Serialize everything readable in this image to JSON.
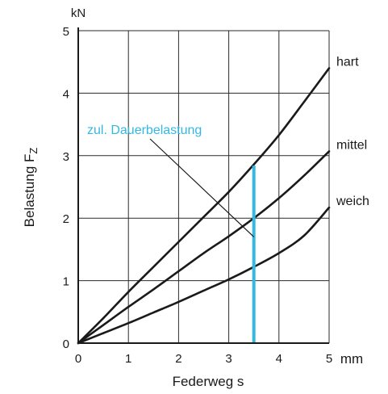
{
  "chart_data": {
    "type": "line",
    "title": "",
    "xlabel": "Federweg s",
    "ylabel": "Belastung F",
    "ylabel_subscript": "Z",
    "x_unit": "mm",
    "y_unit": "kN",
    "xlim": [
      0,
      5
    ],
    "ylim": [
      0,
      5
    ],
    "xticks": [
      "0",
      "1",
      "2",
      "3",
      "4",
      "5"
    ],
    "yticks": [
      "0",
      "1",
      "2",
      "3",
      "4",
      "5"
    ],
    "grid": true,
    "series": [
      {
        "name": "hart",
        "x": [
          0,
          0.5,
          1,
          1.5,
          2,
          2.5,
          3,
          3.5,
          4,
          4.5,
          5
        ],
        "y": [
          0,
          0.4,
          0.82,
          1.22,
          1.62,
          2.02,
          2.42,
          2.86,
          3.33,
          3.86,
          4.4
        ]
      },
      {
        "name": "mittel",
        "x": [
          0,
          0.5,
          1,
          1.5,
          2,
          2.5,
          3,
          3.5,
          4,
          4.5,
          5
        ],
        "y": [
          0,
          0.29,
          0.58,
          0.86,
          1.15,
          1.44,
          1.71,
          2.0,
          2.32,
          2.68,
          3.07
        ]
      },
      {
        "name": "weich",
        "x": [
          0,
          0.5,
          1,
          1.5,
          2,
          2.5,
          3,
          3.5,
          4,
          4.5,
          5
        ],
        "y": [
          0,
          0.16,
          0.32,
          0.49,
          0.66,
          0.84,
          1.02,
          1.22,
          1.44,
          1.72,
          2.17
        ]
      }
    ],
    "annotation": {
      "text": "zul. Dauerbelastung",
      "color": "#35b8e0",
      "marker_x": 3.5,
      "marker_y_range": [
        0,
        2.84
      ],
      "leader_end": [
        3.5,
        1.7
      ]
    }
  }
}
